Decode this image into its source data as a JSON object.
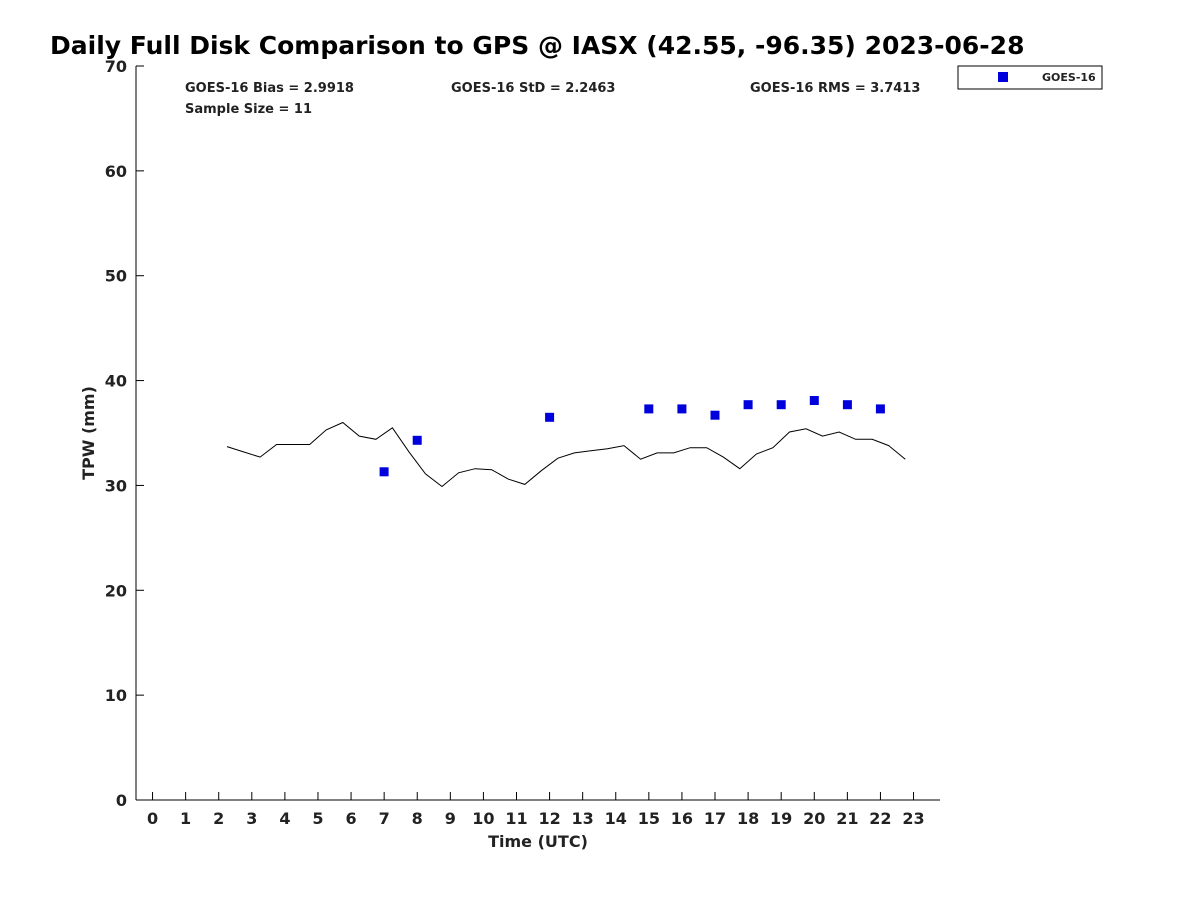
{
  "chart_data": {
    "type": "scatter",
    "title": "Daily Full Disk Comparison to GPS @ IASX (42.55, -96.35) 2023-06-28",
    "xlabel": "Time (UTC)",
    "ylabel": "TPW (mm)",
    "xlim": [
      -0.5,
      23.8
    ],
    "ylim": [
      0,
      70
    ],
    "xticks": [
      0,
      1,
      2,
      3,
      4,
      5,
      6,
      7,
      8,
      9,
      10,
      11,
      12,
      13,
      14,
      15,
      16,
      17,
      18,
      19,
      20,
      21,
      22,
      23
    ],
    "yticks": [
      0,
      10,
      20,
      30,
      40,
      50,
      60,
      70
    ],
    "grid": false,
    "legend_position": "outside-top-right",
    "stats": {
      "bias": "GOES-16 Bias = 2.9918",
      "std": "GOES-16 StD = 2.2463",
      "rms": "GOES-16 RMS = 3.7413",
      "sample": "Sample Size = 11"
    },
    "series": [
      {
        "name": "GOES-16",
        "kind": "scatter",
        "marker": "square",
        "color": "#0000dd",
        "x": [
          7,
          8,
          12,
          15,
          16,
          17,
          18,
          19,
          20,
          21,
          22
        ],
        "y": [
          31.3,
          34.3,
          36.5,
          37.3,
          37.3,
          36.7,
          37.7,
          37.7,
          38.1,
          37.7,
          37.3
        ]
      },
      {
        "kind": "line",
        "color": "#000000",
        "x": [
          2.25,
          2.75,
          3.25,
          3.75,
          4.25,
          4.75,
          5.25,
          5.75,
          6.25,
          6.75,
          7.25,
          7.75,
          8.25,
          8.75,
          9.25,
          9.75,
          10.25,
          10.75,
          11.25,
          11.75,
          12.25,
          12.75,
          13.25,
          13.75,
          14.25,
          14.75,
          15.25,
          15.75,
          16.25,
          16.75,
          17.25,
          17.75,
          18.25,
          18.75,
          19.25,
          19.75,
          20.25,
          20.75,
          21.25,
          21.75,
          22.25,
          22.75
        ],
        "y": [
          33.7,
          33.2,
          32.7,
          33.9,
          33.9,
          33.9,
          35.3,
          36.0,
          34.7,
          34.4,
          35.5,
          33.2,
          31.1,
          29.9,
          31.2,
          31.6,
          31.5,
          30.6,
          30.1,
          31.4,
          32.6,
          33.1,
          33.3,
          33.5,
          33.8,
          32.5,
          33.1,
          33.1,
          33.6,
          33.6,
          32.7,
          31.6,
          33.0,
          33.6,
          35.1,
          35.4,
          34.7,
          35.1,
          34.4,
          34.4,
          33.8,
          32.5
        ]
      }
    ]
  }
}
